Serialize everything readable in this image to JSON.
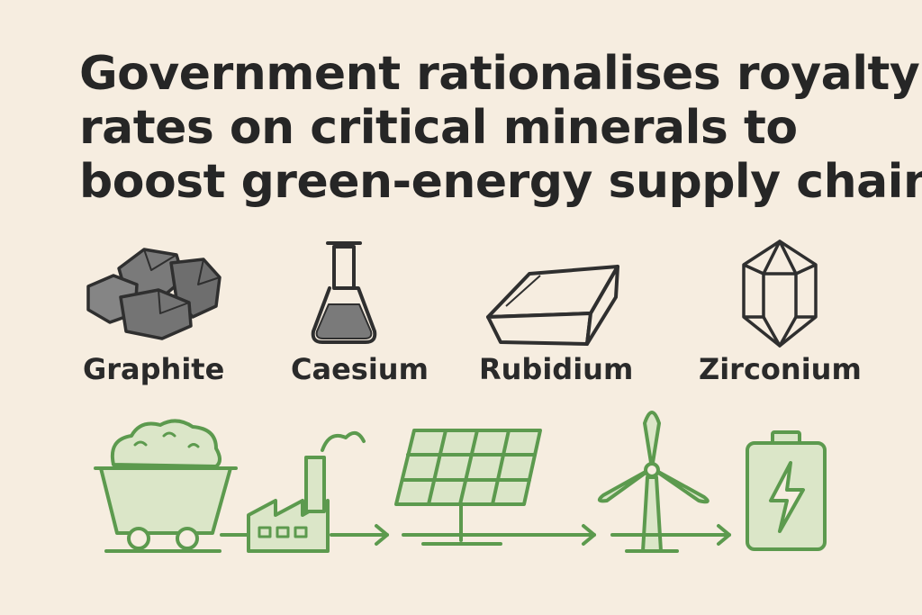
{
  "headline": {
    "line1": "Government rationalises royalty",
    "line2": "rates on critical minerals to",
    "line3": "boost green-energy supply chain"
  },
  "minerals": [
    {
      "label": "Graphite",
      "icon": "graphite-rocks-icon"
    },
    {
      "label": "Caesium",
      "icon": "flask-icon"
    },
    {
      "label": "Rubidium",
      "icon": "metal-ingot-icon"
    },
    {
      "label": "Zirconium",
      "icon": "crystal-icon"
    }
  ],
  "supply_chain": [
    {
      "step": "mine-cart-icon"
    },
    {
      "step": "factory-icon"
    },
    {
      "step": "solar-panel-icon"
    },
    {
      "step": "wind-turbine-icon"
    },
    {
      "step": "battery-icon"
    }
  ],
  "colors": {
    "background": "#f6ede0",
    "text": "#262626",
    "mineral_gray": "#6b6b6b",
    "green_stroke": "#5c9a4e",
    "green_fill": "#dbe6c8"
  }
}
